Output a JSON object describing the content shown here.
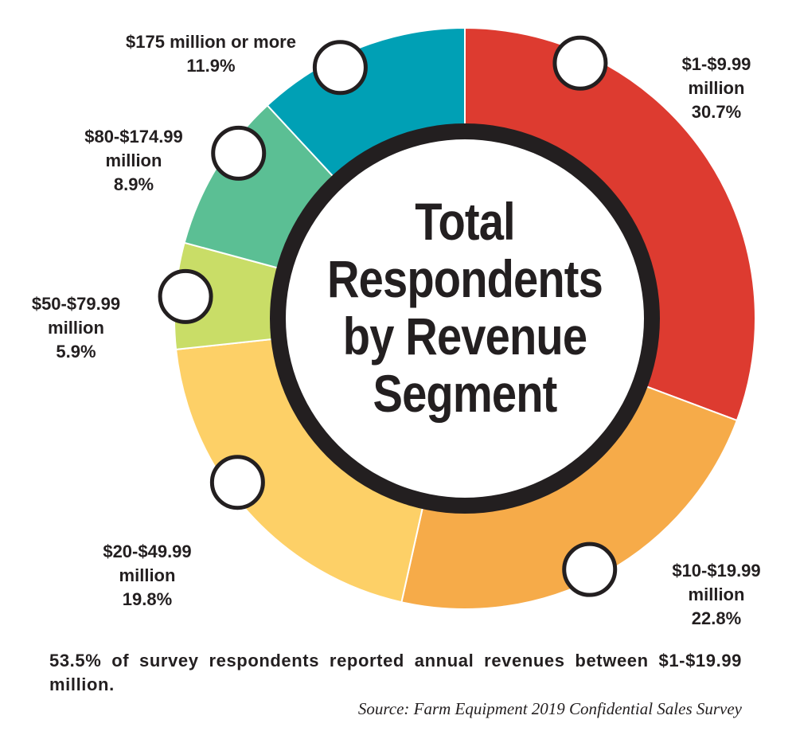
{
  "chart_data": {
    "type": "pie",
    "title": "Total Respondents by Revenue Segment",
    "title_lines": [
      "Total",
      "Respondents",
      "by Revenue",
      "Segment"
    ],
    "slices": [
      {
        "label_lines": [
          "$1-$9.99",
          "million"
        ],
        "pct_text": "30.7%",
        "value": 30.7,
        "color": "#dd3b30"
      },
      {
        "label_lines": [
          "$10-$19.99",
          "million"
        ],
        "pct_text": "22.8%",
        "value": 22.8,
        "color": "#f6ab49"
      },
      {
        "label_lines": [
          "$20-$49.99",
          "million"
        ],
        "pct_text": "19.8%",
        "value": 19.8,
        "color": "#fdd067"
      },
      {
        "label_lines": [
          "$50-$79.99",
          "million"
        ],
        "pct_text": "5.9%",
        "value": 5.9,
        "color": "#c9dd67"
      },
      {
        "label_lines": [
          "$80-$174.99",
          "million"
        ],
        "pct_text": "8.9%",
        "value": 8.9,
        "color": "#5bbf94"
      },
      {
        "label_lines": [
          "$175 million or more"
        ],
        "pct_text": "11.9%",
        "value": 11.9,
        "color": "#00a0b5"
      }
    ]
  },
  "note": "53.5% of survey respondents reported annual revenues between $1-$19.99 million.",
  "source": "Source: Farm Equipment 2019 Confidential Sales Survey"
}
